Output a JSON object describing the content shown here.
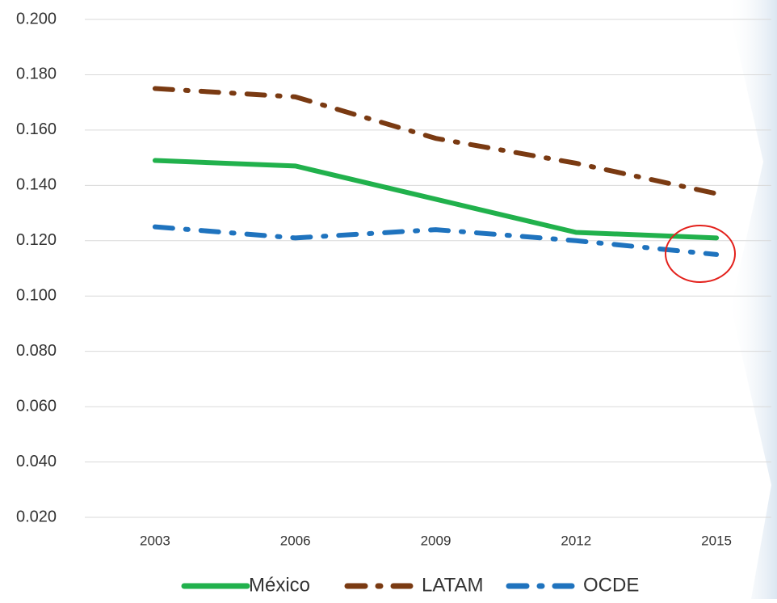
{
  "chart_data": {
    "type": "line",
    "categories": [
      "2003",
      "2006",
      "2009",
      "2012",
      "2015"
    ],
    "series": [
      {
        "name": "México",
        "color": "#21b14c",
        "style": "solid",
        "values": [
          0.149,
          0.147,
          0.135,
          0.123,
          0.121
        ]
      },
      {
        "name": "LATAM",
        "color": "#7a3a12",
        "style": "dash-dot",
        "values": [
          0.175,
          0.172,
          0.157,
          0.148,
          0.137
        ]
      },
      {
        "name": "OCDE",
        "color": "#1f73be",
        "style": "dash-dot",
        "values": [
          0.125,
          0.121,
          0.124,
          0.12,
          0.115
        ]
      }
    ],
    "ylim": [
      0.02,
      0.2
    ],
    "yticks": [
      {
        "value": 0.02,
        "label": "0.020"
      },
      {
        "value": 0.04,
        "label": "0.040"
      },
      {
        "value": 0.06,
        "label": "0.060"
      },
      {
        "value": 0.08,
        "label": "0.080"
      },
      {
        "value": 0.1,
        "label": "0.100"
      },
      {
        "value": 0.12,
        "label": "0.120"
      },
      {
        "value": 0.14,
        "label": "0.140"
      },
      {
        "value": 0.16,
        "label": "0.160"
      },
      {
        "value": 0.18,
        "label": "0.180"
      },
      {
        "value": 0.2,
        "label": "0.200"
      }
    ],
    "grid": true,
    "legend": "bottom"
  }
}
